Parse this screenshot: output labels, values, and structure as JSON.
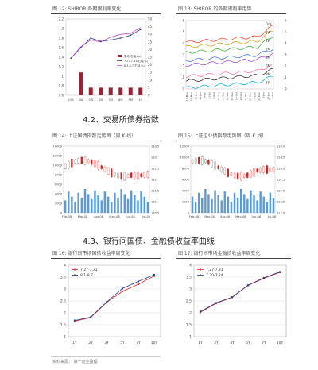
{
  "fig12": {
    "title": "图 12:  SHIBOR 各期限利率变化",
    "y_left": [
      "2.2",
      "2",
      "1.8",
      "1.6",
      "1.4",
      "1.2",
      "1",
      "0.8",
      "0.6"
    ],
    "y_right": [
      "50",
      "45",
      "40",
      "35",
      "30",
      "25",
      "20",
      "15",
      "10",
      "5",
      "0"
    ],
    "x": [
      "O/N",
      "1W",
      "2W",
      "1M",
      "3M",
      "6M",
      "9M",
      "1Y"
    ],
    "legend": [
      "变动(右轴,bp)",
      "7.27-7.31(右轴,%)",
      "8.3-8.7(右轴,%)"
    ],
    "colors": {
      "bar": "#9b2335",
      "line_a": "#2f3f7f",
      "line_b": "#cc44cc"
    }
  },
  "fig13": {
    "title": "图 13:  SHIBOR 的各期限利率走势",
    "y_left": [
      "6",
      "5",
      "4",
      "3",
      "2",
      "1",
      "0"
    ],
    "y_right": [
      "6",
      "5",
      "4",
      "3",
      "2",
      "1",
      "0"
    ],
    "labels": [
      "O/N",
      "1W",
      "2W",
      "1M",
      "3M",
      "6M",
      "9M",
      "1Y"
    ],
    "x_ticks": [
      "13-May",
      "27-May",
      "10-Jun",
      "24-Jun",
      "8-Jul",
      "22-Jul",
      "5-Aug",
      "19-Aug",
      "2-Sep",
      "16-Sep",
      "30-Sep",
      "14-Oct",
      "28-Oct",
      "11-Nov",
      "25-Nov",
      "9-Dec",
      "23-Dec",
      "6-Jan",
      "20-Jan",
      "3-Feb"
    ],
    "colors": [
      "#ee3322",
      "#cc9900",
      "#33aa33",
      "#3366cc",
      "#9933cc",
      "#ff6699",
      "#222222",
      "#00aacc"
    ]
  },
  "sec42": {
    "title": "4.2、交易所债券指数"
  },
  "fig14": {
    "title": "图 14:  上证国债指数走势图（周 K 线）",
    "y_left": [
      "14000",
      "12000",
      "10000",
      "8000",
      "6000",
      "4000",
      "2000",
      "0"
    ],
    "y_right": [
      "133.5",
      "133",
      "132.5",
      "132",
      "131.5",
      "131",
      "130.5"
    ],
    "x": [
      "Feb-08",
      "Mar-08",
      "Apr-08",
      "May-08",
      "Jun-08",
      "Jul-08"
    ]
  },
  "fig15": {
    "title": "图 15:  上证企业债指数走势图（周 K 线）",
    "y_left": [
      "12000",
      "10000",
      "8000",
      "6000",
      "4000",
      "2000",
      "0"
    ],
    "y_right": [
      "136.0",
      "134.5",
      "133.0",
      "131.5",
      "130.0",
      "128.5",
      "127.0"
    ],
    "x": [
      "Feb-08",
      "Mar-08",
      "Apr-08",
      "May-08",
      "Jun-08",
      "Jul-08"
    ]
  },
  "sec43": {
    "title": "4.3、银行间国债、金融债收益率曲线"
  },
  "fig16": {
    "title": "图 16:  银行间市场国债收益率周变化"
  },
  "fig17": {
    "title": "图 17:  银行间市场金融债收益率周变化"
  },
  "chart_data": [
    {
      "type": "line",
      "id": "fig16",
      "categories": [
        "1Y",
        "2Y",
        "3Y",
        "5Y",
        "7Y",
        "10Y"
      ],
      "series": [
        {
          "name": "7.27-7.31",
          "values": [
            1.65,
            1.8,
            2.43,
            2.9,
            3.2,
            3.55
          ]
        },
        {
          "name": "8.1-8.7",
          "values": [
            1.68,
            1.82,
            2.45,
            3.02,
            3.32,
            3.6
          ]
        }
      ],
      "y_ticks": [
        "4",
        "3.5",
        "3",
        "2.5",
        "2",
        "1.5",
        "1"
      ],
      "ylim": [
        1,
        4
      ],
      "colors": [
        "#cc3333",
        "#2f3f7f"
      ]
    },
    {
      "type": "line",
      "id": "fig17",
      "categories": [
        "1Y",
        "2Y",
        "3Y",
        "5Y",
        "7Y",
        "10Y"
      ],
      "series": [
        {
          "name": "7.27-7.31",
          "values": [
            2.02,
            2.4,
            2.65,
            3.15,
            3.45,
            3.7
          ]
        },
        {
          "name": "7.20-7.24",
          "values": [
            2.05,
            2.42,
            2.66,
            3.16,
            3.47,
            3.72
          ]
        }
      ],
      "y_ticks": [
        "4",
        "3.5",
        "3",
        "2.5",
        "2",
        "1.5",
        "1"
      ],
      "ylim": [
        1,
        4
      ],
      "colors": [
        "#cc3333",
        "#2f3f7f"
      ]
    }
  ],
  "footer": {
    "source": "资料来源：  第一创业整理"
  }
}
